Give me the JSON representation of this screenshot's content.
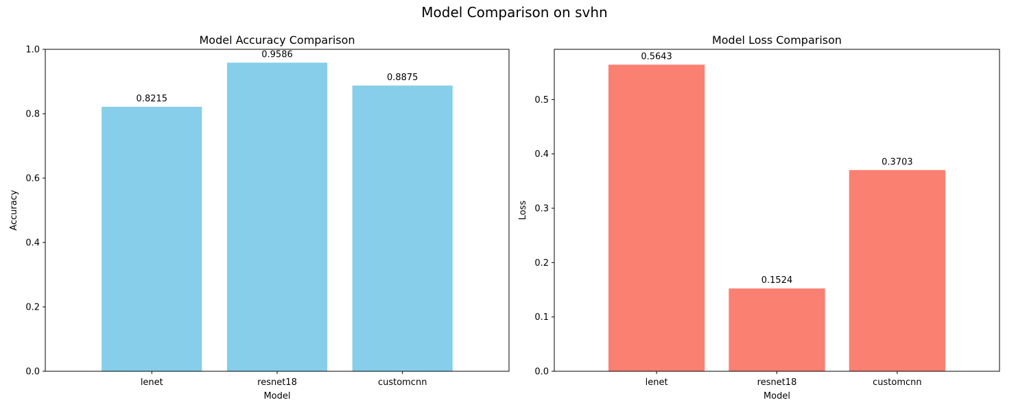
{
  "figure": {
    "suptitle": "Model Comparison on svhn"
  },
  "chart_data": [
    {
      "type": "bar",
      "title": "Model Accuracy Comparison",
      "xlabel": "Model",
      "ylabel": "Accuracy",
      "categories": [
        "lenet",
        "resnet18",
        "customcnn"
      ],
      "values": [
        0.8215,
        0.9586,
        0.8875
      ],
      "value_labels": [
        "0.8215",
        "0.9586",
        "0.8875"
      ],
      "ylim": [
        0,
        1.0
      ],
      "yticks": [
        0.0,
        0.2,
        0.4,
        0.6,
        0.8,
        1.0
      ],
      "ytick_labels": [
        "0.0",
        "0.2",
        "0.4",
        "0.6",
        "0.8",
        "1.0"
      ],
      "bar_color": "#87CEEB",
      "grid": false
    },
    {
      "type": "bar",
      "title": "Model Loss Comparison",
      "xlabel": "Model",
      "ylabel": "Loss",
      "categories": [
        "lenet",
        "resnet18",
        "customcnn"
      ],
      "values": [
        0.5643,
        0.1524,
        0.3703
      ],
      "value_labels": [
        "0.5643",
        "0.1524",
        "0.3703"
      ],
      "ylim": [
        0,
        0.5925
      ],
      "yticks": [
        0.0,
        0.1,
        0.2,
        0.3,
        0.4,
        0.5
      ],
      "ytick_labels": [
        "0.0",
        "0.1",
        "0.2",
        "0.3",
        "0.4",
        "0.5"
      ],
      "bar_color": "#FA8072",
      "grid": false
    }
  ]
}
